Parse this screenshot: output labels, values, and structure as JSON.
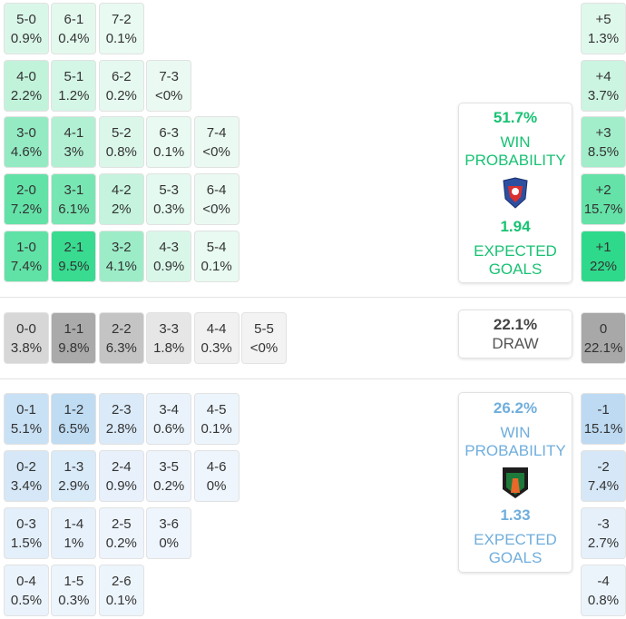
{
  "home": {
    "rows": [
      [
        {
          "score": "5-0",
          "pct": "0.9%"
        },
        {
          "score": "6-1",
          "pct": "0.4%"
        },
        {
          "score": "7-2",
          "pct": "0.1%"
        }
      ],
      [
        {
          "score": "4-0",
          "pct": "2.2%"
        },
        {
          "score": "5-1",
          "pct": "1.2%"
        },
        {
          "score": "6-2",
          "pct": "0.2%"
        },
        {
          "score": "7-3",
          "pct": "<0%"
        }
      ],
      [
        {
          "score": "3-0",
          "pct": "4.6%"
        },
        {
          "score": "4-1",
          "pct": "3%"
        },
        {
          "score": "5-2",
          "pct": "0.8%"
        },
        {
          "score": "6-3",
          "pct": "0.1%"
        },
        {
          "score": "7-4",
          "pct": "<0%"
        }
      ],
      [
        {
          "score": "2-0",
          "pct": "7.2%"
        },
        {
          "score": "3-1",
          "pct": "6.1%"
        },
        {
          "score": "4-2",
          "pct": "2%"
        },
        {
          "score": "5-3",
          "pct": "0.3%"
        },
        {
          "score": "6-4",
          "pct": "<0%"
        }
      ],
      [
        {
          "score": "1-0",
          "pct": "7.4%"
        },
        {
          "score": "2-1",
          "pct": "9.5%"
        },
        {
          "score": "3-2",
          "pct": "4.1%"
        },
        {
          "score": "4-3",
          "pct": "0.9%"
        },
        {
          "score": "5-4",
          "pct": "0.1%"
        }
      ]
    ],
    "margins": [
      {
        "label": "+5",
        "pct": "1.3%"
      },
      {
        "label": "+4",
        "pct": "3.7%"
      },
      {
        "label": "+3",
        "pct": "8.5%"
      },
      {
        "label": "+2",
        "pct": "15.7%"
      },
      {
        "label": "+1",
        "pct": "22%"
      }
    ],
    "card": {
      "win_pct": "51.7%",
      "win_label": "WIN PROBABILITY",
      "xg": "1.94",
      "xg_label": "EXPECTED GOALS"
    }
  },
  "draw": {
    "rows": [
      [
        {
          "score": "0-0",
          "pct": "3.8%"
        },
        {
          "score": "1-1",
          "pct": "9.8%"
        },
        {
          "score": "2-2",
          "pct": "6.3%"
        },
        {
          "score": "3-3",
          "pct": "1.8%"
        },
        {
          "score": "4-4",
          "pct": "0.3%"
        },
        {
          "score": "5-5",
          "pct": "<0%"
        }
      ]
    ],
    "margins": [
      {
        "label": "0",
        "pct": "22.1%"
      }
    ],
    "card": {
      "pct": "22.1%",
      "label": "DRAW"
    }
  },
  "away": {
    "rows": [
      [
        {
          "score": "0-1",
          "pct": "5.1%"
        },
        {
          "score": "1-2",
          "pct": "6.5%"
        },
        {
          "score": "2-3",
          "pct": "2.8%"
        },
        {
          "score": "3-4",
          "pct": "0.6%"
        },
        {
          "score": "4-5",
          "pct": "0.1%"
        }
      ],
      [
        {
          "score": "0-2",
          "pct": "3.4%"
        },
        {
          "score": "1-3",
          "pct": "2.9%"
        },
        {
          "score": "2-4",
          "pct": "0.9%"
        },
        {
          "score": "3-5",
          "pct": "0.2%"
        },
        {
          "score": "4-6",
          "pct": "0%"
        }
      ],
      [
        {
          "score": "0-3",
          "pct": "1.5%"
        },
        {
          "score": "1-4",
          "pct": "1%"
        },
        {
          "score": "2-5",
          "pct": "0.2%"
        },
        {
          "score": "3-6",
          "pct": "0%"
        }
      ],
      [
        {
          "score": "0-4",
          "pct": "0.5%"
        },
        {
          "score": "1-5",
          "pct": "0.3%"
        },
        {
          "score": "2-6",
          "pct": "0.1%"
        }
      ]
    ],
    "margins": [
      {
        "label": "-1",
        "pct": "15.1%"
      },
      {
        "label": "-2",
        "pct": "7.4%"
      },
      {
        "label": "-3",
        "pct": "2.7%"
      },
      {
        "label": "-4",
        "pct": "0.8%"
      }
    ],
    "card": {
      "win_pct": "26.2%",
      "win_label": "WIN PROBABILITY",
      "xg": "1.33",
      "xg_label": "EXPECTED GOALS"
    }
  }
}
